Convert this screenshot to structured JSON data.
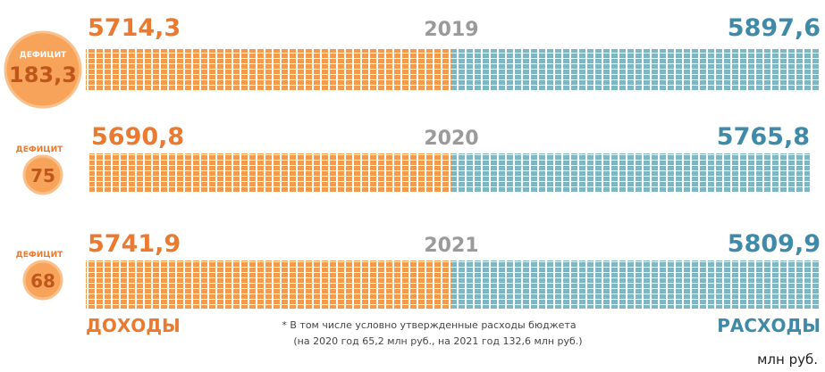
{
  "rows": [
    {
      "year": "2019",
      "income": "5714,3",
      "expense": "5897,6",
      "deficit_label": "ДЕФИЦИТ",
      "deficit": "183,3"
    },
    {
      "year": "2020",
      "income": "5690,8",
      "expense": "5765,8",
      "deficit_label": "ДЕФИЦИТ",
      "deficit": "75"
    },
    {
      "year": "2021",
      "income": "5741,9",
      "expense": "5809,9",
      "deficit_label": "ДЕФИЦИТ",
      "deficit": "68"
    }
  ],
  "income_label": "ДОХОДЫ",
  "expense_label": "РАСХОДЫ",
  "note": [
    "* В том числе условно утвержденные расходы бюджета",
    "(на 2020 год 65,2 млн руб., на 2021 год 132,6 млн руб.)"
  ],
  "unit": "млн руб."
}
